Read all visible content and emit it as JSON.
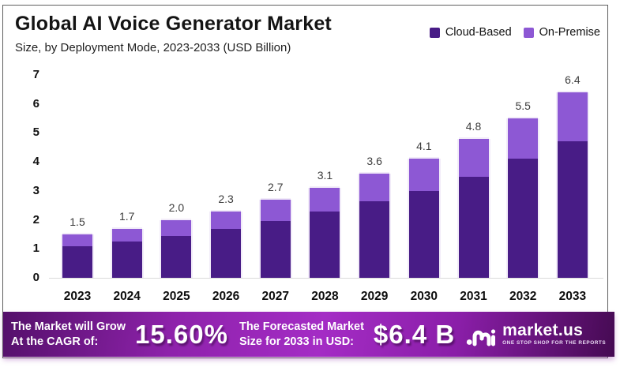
{
  "header": {
    "title": "Global AI Voice Generator Market",
    "subtitle": "Size, by Deployment Mode, 2023-2033 (USD Billion)"
  },
  "legend": [
    {
      "label": "Cloud-Based",
      "color": "#481c86"
    },
    {
      "label": "On-Premise",
      "color": "#8d58d4"
    }
  ],
  "colors": {
    "cloud_based": "#481c86",
    "on_premise": "#8d58d4",
    "banner_purple": "#a42cc5",
    "bar_halo": "#f2ecf9"
  },
  "chart_data": {
    "type": "bar",
    "stacked": true,
    "title": "Global AI Voice Generator Market",
    "subtitle": "Size, by Deployment Mode, 2023-2033 (USD Billion)",
    "xlabel": "",
    "ylabel": "",
    "units": "USD Billion",
    "categories": [
      "2023",
      "2024",
      "2025",
      "2026",
      "2027",
      "2028",
      "2029",
      "2030",
      "2031",
      "2032",
      "2033"
    ],
    "series": [
      {
        "name": "Cloud-Based",
        "color": "#481c86",
        "values": [
          1.1,
          1.25,
          1.45,
          1.7,
          1.95,
          2.3,
          2.65,
          3.0,
          3.5,
          4.1,
          4.7
        ]
      },
      {
        "name": "On-Premise",
        "color": "#8d58d4",
        "values": [
          0.4,
          0.45,
          0.55,
          0.6,
          0.75,
          0.8,
          0.95,
          1.1,
          1.3,
          1.4,
          1.7
        ]
      }
    ],
    "totals": [
      1.5,
      1.7,
      2.0,
      2.3,
      2.7,
      3.1,
      3.6,
      4.1,
      4.8,
      5.5,
      6.4
    ],
    "total_labels": [
      "1.5",
      "1.7",
      "2.0",
      "2.3",
      "2.7",
      "3.1",
      "3.6",
      "4.1",
      "4.8",
      "5.5",
      "6.4"
    ],
    "ylim": [
      0,
      7
    ],
    "yticks": [
      0,
      1,
      2,
      3,
      4,
      5,
      6,
      7
    ],
    "grid": false,
    "legend_position": "top-right"
  },
  "footer": {
    "cagr_label_line1": "The Market will Grow",
    "cagr_label_line2": "At the CAGR of:",
    "cagr_value": "15.60%",
    "forecast_label_line1": "The Forecasted Market",
    "forecast_label_line2": "Size for 2033 in USD:",
    "forecast_value": "$6.4 B",
    "brand": "market.us",
    "brand_tagline": "ONE STOP SHOP FOR THE REPORTS"
  }
}
